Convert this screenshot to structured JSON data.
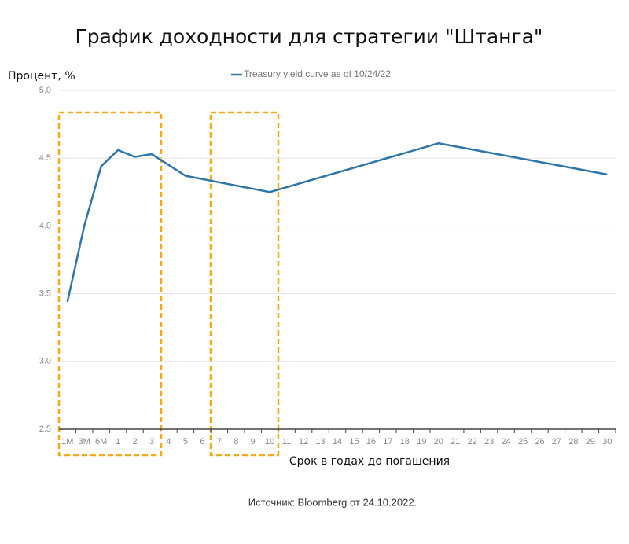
{
  "chart_data": {
    "type": "line",
    "title": "График доходности для стратегии \"Штанга\"",
    "y_label": "Процент, %",
    "x_label": "Срок в годах до погашения",
    "source": "Источник: Bloomberg от 24.10.2022.",
    "categories": [
      "1M",
      "3M",
      "6M",
      "1",
      "2",
      "3",
      "4",
      "5",
      "6",
      "7",
      "8",
      "9",
      "10",
      "11",
      "12",
      "13",
      "14",
      "15",
      "16",
      "17",
      "18",
      "19",
      "20",
      "21",
      "22",
      "23",
      "24",
      "25",
      "26",
      "27",
      "28",
      "29",
      "30"
    ],
    "series": [
      {
        "name": "Treasury yield curve as of 10/24/22",
        "color": "#2e75a8",
        "x": [
          "1M",
          "3M",
          "6M",
          "1",
          "2",
          "3",
          "5",
          "10",
          "20",
          "30"
        ],
        "values": [
          3.44,
          4.0,
          4.44,
          4.56,
          4.51,
          4.53,
          4.37,
          4.25,
          4.61,
          4.38
        ]
      }
    ],
    "ylim": [
      2.5,
      5.0
    ],
    "yticks": [
      {
        "value": 2.5,
        "label": "2.5"
      },
      {
        "value": 3,
        "label": "3.0"
      },
      {
        "value": 3.5,
        "label": "3.5"
      },
      {
        "value": 4,
        "label": "4.0"
      },
      {
        "value": 4.5,
        "label": "4.5"
      },
      {
        "value": 5,
        "label": "5.0"
      }
    ],
    "grid": true
  }
}
